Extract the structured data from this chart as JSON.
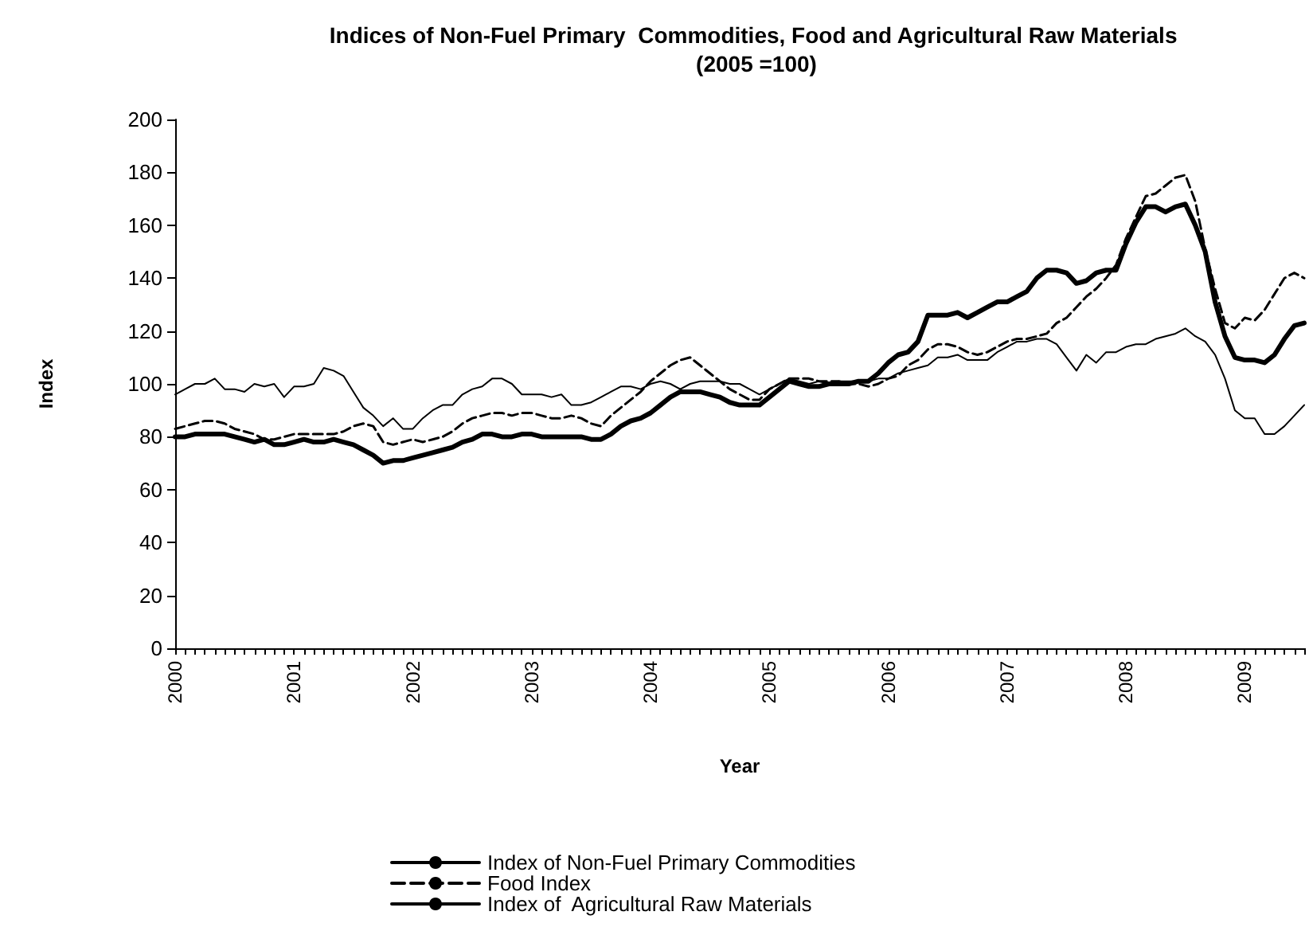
{
  "chart_data": {
    "type": "line",
    "title": "Indices of Non-Fuel Primary  Commodities, Food and Agricultural Raw Materials (2005 =100)",
    "xlabel": "Year",
    "ylabel": "Index",
    "categories": [
      "2000",
      null,
      null,
      null,
      null,
      null,
      null,
      null,
      null,
      null,
      null,
      null,
      "2001",
      null,
      null,
      null,
      null,
      null,
      null,
      null,
      null,
      null,
      null,
      null,
      "2002",
      null,
      null,
      null,
      null,
      null,
      null,
      null,
      null,
      null,
      null,
      null,
      "2003",
      null,
      null,
      null,
      null,
      null,
      null,
      null,
      null,
      null,
      null,
      null,
      "2004",
      null,
      null,
      null,
      null,
      null,
      null,
      null,
      null,
      null,
      null,
      null,
      "2005",
      null,
      null,
      null,
      null,
      null,
      null,
      null,
      null,
      null,
      null,
      null,
      "2006",
      null,
      null,
      null,
      null,
      null,
      null,
      null,
      null,
      null,
      null,
      null,
      "2007",
      null,
      null,
      null,
      null,
      null,
      null,
      null,
      null,
      null,
      null,
      null,
      "2008",
      null,
      null,
      null,
      null,
      null,
      null,
      null,
      null,
      null,
      null,
      null,
      "2009",
      null,
      null,
      null,
      null,
      null,
      null
    ],
    "series": [
      {
        "name": "Index of Non-Fuel Primary Commodities",
        "color": "#000000",
        "line_style": "solid",
        "values": [
          80,
          80,
          81,
          81,
          81,
          81,
          80,
          79,
          78,
          79,
          77,
          77,
          78,
          79,
          78,
          78,
          79,
          78,
          77,
          75,
          73,
          70,
          71,
          71,
          72,
          73,
          74,
          75,
          76,
          78,
          79,
          81,
          81,
          80,
          80,
          81,
          81,
          80,
          80,
          80,
          80,
          80,
          79,
          79,
          81,
          84,
          86,
          87,
          89,
          92,
          95,
          97,
          97,
          97,
          96,
          95,
          93,
          92,
          92,
          92,
          95,
          98,
          101,
          100,
          99,
          99,
          100,
          100,
          100,
          101,
          101,
          104,
          108,
          111,
          112,
          116,
          126,
          126,
          126,
          127,
          125,
          127,
          129,
          131,
          131,
          133,
          135,
          140,
          143,
          143,
          142,
          138,
          139,
          142,
          143,
          143,
          153,
          161,
          167,
          167,
          165,
          167,
          168,
          160,
          150,
          131,
          118,
          110,
          109,
          109,
          108,
          111,
          117,
          122,
          123
        ]
      },
      {
        "name": "Food Index",
        "color": "#000000",
        "line_style": "dashed",
        "values": [
          83,
          84,
          85,
          86,
          86,
          85,
          83,
          82,
          81,
          79,
          79,
          80,
          81,
          81,
          81,
          81,
          81,
          82,
          84,
          85,
          84,
          78,
          77,
          78,
          79,
          78,
          79,
          80,
          82,
          85,
          87,
          88,
          89,
          89,
          88,
          89,
          89,
          88,
          87,
          87,
          88,
          87,
          85,
          84,
          88,
          91,
          94,
          97,
          101,
          104,
          107,
          109,
          110,
          107,
          104,
          101,
          98,
          96,
          94,
          94,
          98,
          100,
          102,
          102,
          102,
          101,
          101,
          101,
          100,
          100,
          99,
          100,
          102,
          103,
          107,
          109,
          113,
          115,
          115,
          114,
          112,
          111,
          112,
          114,
          116,
          117,
          117,
          118,
          119,
          123,
          125,
          129,
          133,
          136,
          140,
          145,
          155,
          163,
          171,
          172,
          175,
          178,
          179,
          169,
          151,
          136,
          123,
          121,
          125,
          124,
          128,
          134,
          140,
          142,
          140
        ]
      },
      {
        "name": "Index of  Agricultural Raw Materials",
        "color": "#000000",
        "line_style": "solid",
        "values": [
          96,
          98,
          100,
          100,
          102,
          98,
          98,
          97,
          100,
          99,
          100,
          95,
          99,
          99,
          100,
          106,
          105,
          103,
          97,
          91,
          88,
          84,
          87,
          83,
          83,
          87,
          90,
          92,
          92,
          96,
          98,
          99,
          102,
          102,
          100,
          96,
          96,
          96,
          95,
          96,
          92,
          92,
          93,
          95,
          97,
          99,
          99,
          98,
          100,
          101,
          100,
          98,
          100,
          101,
          101,
          101,
          100,
          100,
          98,
          96,
          98,
          100,
          102,
          101,
          100,
          101,
          100,
          101,
          101,
          101,
          101,
          102,
          102,
          104,
          105,
          106,
          107,
          110,
          110,
          111,
          109,
          109,
          109,
          112,
          114,
          116,
          116,
          117,
          117,
          115,
          110,
          105,
          111,
          108,
          112,
          112,
          114,
          115,
          115,
          117,
          118,
          119,
          121,
          118,
          116,
          111,
          102,
          90,
          87,
          87,
          81,
          81,
          84,
          88,
          92
        ]
      }
    ],
    "ylim": [
      0,
      200
    ],
    "yticks": [
      0,
      20,
      40,
      60,
      80,
      100,
      120,
      140,
      160,
      180,
      200
    ],
    "grid": false,
    "legend": "bottom",
    "marker": "none"
  }
}
